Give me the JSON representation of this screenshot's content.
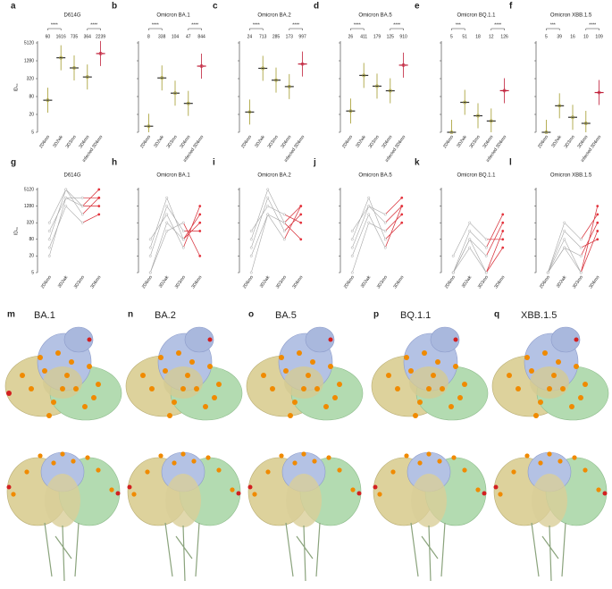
{
  "chart_data": [
    {
      "type": "dot",
      "panel": "a",
      "title": "D614G",
      "ylabel": "ID₅₀",
      "log": true,
      "ylim": [
        5,
        5120
      ],
      "yticks": [
        5,
        20,
        80,
        320,
        1280,
        5120
      ],
      "categories": [
        "2D6mo",
        "3D2wk",
        "3D3mo",
        "3D6mo",
        "infected 3D6mo"
      ],
      "values": [
        60,
        1616,
        735,
        364,
        2239
      ],
      "significance": [
        "****",
        "****"
      ],
      "colors": [
        "#a39b2c",
        "#a39b2c",
        "#a39b2c",
        "#a39b2c",
        "#c0203a"
      ]
    },
    {
      "type": "dot",
      "panel": "b",
      "title": "Omicron BA.1",
      "log": true,
      "ylim": [
        5,
        5120
      ],
      "categories": [
        "2D6mo",
        "3D2wk",
        "3D3mo",
        "3D6mo",
        "infected 3D6mo"
      ],
      "values": [
        8,
        338,
        104,
        47,
        844
      ],
      "significance": [
        "****",
        "****"
      ],
      "colors": [
        "#a39b2c",
        "#a39b2c",
        "#a39b2c",
        "#a39b2c",
        "#c0203a"
      ]
    },
    {
      "type": "dot",
      "panel": "c",
      "title": "Omicron BA.2",
      "log": true,
      "ylim": [
        5,
        5120
      ],
      "categories": [
        "2D6mo",
        "3D2wk",
        "3D3mo",
        "3D6mo",
        "infected 3D6mo"
      ],
      "values": [
        24,
        713,
        285,
        173,
        997
      ],
      "significance": [
        "****",
        "****"
      ],
      "colors": [
        "#a39b2c",
        "#a39b2c",
        "#a39b2c",
        "#a39b2c",
        "#c0203a"
      ]
    },
    {
      "type": "dot",
      "panel": "d",
      "title": "Omicron BA.5",
      "log": true,
      "ylim": [
        5,
        5120
      ],
      "categories": [
        "2D6mo",
        "3D2wk",
        "3D3mo",
        "3D6mo",
        "infected 3D6mo"
      ],
      "values": [
        26,
        411,
        179,
        125,
        910
      ],
      "significance": [
        "****",
        "****"
      ],
      "colors": [
        "#a39b2c",
        "#a39b2c",
        "#a39b2c",
        "#a39b2c",
        "#c0203a"
      ]
    },
    {
      "type": "dot",
      "panel": "e",
      "title": "Omicron BQ.1.1",
      "log": true,
      "ylim": [
        5,
        5120
      ],
      "categories": [
        "2D6mo",
        "3D2wk",
        "3D3mo",
        "3D6mo",
        "infected 3D6mo"
      ],
      "values": [
        5,
        51,
        18,
        12,
        126
      ],
      "significance": [
        "***",
        "****"
      ],
      "colors": [
        "#a39b2c",
        "#a39b2c",
        "#a39b2c",
        "#a39b2c",
        "#c0203a"
      ]
    },
    {
      "type": "dot",
      "panel": "f",
      "title": "Omicron XBB.1.5",
      "log": true,
      "ylim": [
        5,
        5120
      ],
      "categories": [
        "2D6mo",
        "3D2wk",
        "3D3mo",
        "3D6mo",
        "infected 3D6mo"
      ],
      "values": [
        5,
        39,
        16,
        10,
        109
      ],
      "significance": [
        "***",
        "****"
      ],
      "colors": [
        "#a39b2c",
        "#a39b2c",
        "#a39b2c",
        "#a39b2c",
        "#c0203a"
      ]
    },
    {
      "type": "line",
      "panel": "g",
      "title": "D614G",
      "ylabel": "ID₅₀",
      "log": true,
      "ylim": [
        5,
        5120
      ],
      "yticks": [
        5,
        20,
        80,
        320,
        1280,
        5120
      ],
      "categories": [
        "2D6mo",
        "3D2wk",
        "3D3mo",
        "3D6mo"
      ],
      "color": "#a6a6a6",
      "highlight_color": "#e4313b",
      "series": [
        {
          "values": [
            20,
            2560,
            1280,
            1280
          ]
        },
        {
          "values": [
            80,
            5120,
            640,
            2560
          ]
        },
        {
          "values": [
            160,
            2560,
            2560,
            2560
          ]
        },
        {
          "values": [
            40,
            1280,
            320,
            640
          ]
        },
        {
          "values": [
            320,
            5120,
            1280,
            5120
          ]
        }
      ]
    },
    {
      "type": "line",
      "panel": "h",
      "title": "Omicron BA.1",
      "log": true,
      "ylim": [
        5,
        5120
      ],
      "categories": [
        "2D6mo",
        "3D2wk",
        "3D3mo",
        "3D6mo"
      ],
      "color": "#a6a6a6",
      "highlight_color": "#e4313b",
      "series": [
        {
          "values": [
            5,
            320,
            80,
            640
          ]
        },
        {
          "values": [
            20,
            1280,
            160,
            160
          ]
        },
        {
          "values": [
            80,
            640,
            40,
            1280
          ]
        },
        {
          "values": [
            5,
            160,
            320,
            20
          ]
        },
        {
          "values": [
            40,
            2560,
            80,
            320
          ]
        }
      ]
    },
    {
      "type": "line",
      "panel": "i",
      "title": "Omicron BA.2",
      "log": true,
      "ylim": [
        5,
        5120
      ],
      "categories": [
        "2D6mo",
        "3D2wk",
        "3D3mo",
        "3D6mo"
      ],
      "color": "#a6a6a6",
      "highlight_color": "#e4313b",
      "series": [
        {
          "values": [
            5,
            640,
            320,
            1280
          ]
        },
        {
          "values": [
            40,
            2560,
            160,
            640
          ]
        },
        {
          "values": [
            160,
            1280,
            640,
            320
          ]
        },
        {
          "values": [
            20,
            640,
            80,
            1280
          ]
        },
        {
          "values": [
            80,
            5120,
            320,
            80
          ]
        }
      ]
    },
    {
      "type": "line",
      "panel": "j",
      "title": "Omicron BA.5",
      "log": true,
      "ylim": [
        5,
        5120
      ],
      "categories": [
        "2D6mo",
        "3D2wk",
        "3D3mo",
        "3D6mo"
      ],
      "color": "#a6a6a6",
      "highlight_color": "#e4313b",
      "series": [
        {
          "values": [
            5,
            320,
            160,
            640
          ]
        },
        {
          "values": [
            40,
            1280,
            320,
            1280
          ]
        },
        {
          "values": [
            80,
            2560,
            80,
            320
          ]
        },
        {
          "values": [
            20,
            640,
            40,
            1280
          ]
        },
        {
          "values": [
            160,
            1280,
            640,
            2560
          ]
        }
      ]
    },
    {
      "type": "line",
      "panel": "k",
      "title": "Omicron BQ.1.1",
      "log": true,
      "ylim": [
        5,
        5120
      ],
      "categories": [
        "2D6mo",
        "3D2wk",
        "3D3mo",
        "3D6mo"
      ],
      "color": "#a6a6a6",
      "highlight_color": "#e4313b",
      "series": [
        {
          "values": [
            5,
            80,
            20,
            320
          ]
        },
        {
          "values": [
            5,
            40,
            5,
            160
          ]
        },
        {
          "values": [
            20,
            320,
            80,
            80
          ]
        },
        {
          "values": [
            5,
            160,
            40,
            640
          ]
        },
        {
          "values": [
            5,
            80,
            5,
            40
          ]
        }
      ]
    },
    {
      "type": "line",
      "panel": "l",
      "title": "Omicron XBB.1.5",
      "log": true,
      "ylim": [
        5,
        5120
      ],
      "categories": [
        "2D6mo",
        "3D2wk",
        "3D3mo",
        "3D6mo"
      ],
      "color": "#a6a6a6",
      "highlight_color": "#e4313b",
      "series": [
        {
          "values": [
            5,
            40,
            20,
            320
          ]
        },
        {
          "values": [
            5,
            320,
            80,
            640
          ]
        },
        {
          "values": [
            5,
            80,
            5,
            160
          ]
        },
        {
          "values": [
            5,
            160,
            40,
            80
          ]
        },
        {
          "values": [
            5,
            40,
            5,
            1280
          ]
        }
      ]
    }
  ],
  "structures": [
    {
      "panel": "m",
      "label": "BA.1"
    },
    {
      "panel": "n",
      "label": "BA.2"
    },
    {
      "panel": "o",
      "label": "BA.5"
    },
    {
      "panel": "p",
      "label": "BQ.1.1"
    },
    {
      "panel": "q",
      "label": "XBB.1.5"
    }
  ]
}
